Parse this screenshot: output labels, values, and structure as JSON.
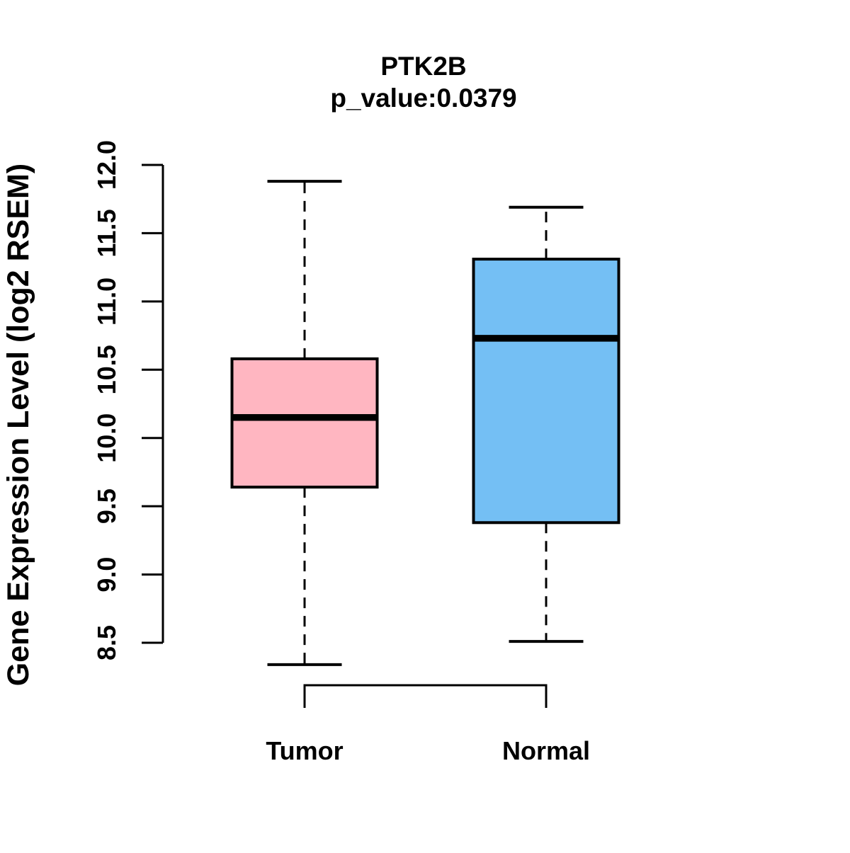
{
  "chart_data": {
    "type": "boxplot",
    "title": "PTK2B",
    "subtitle": "p_value:0.0379",
    "p_value": 0.0379,
    "ylabel": "Gene Expression Level (log2 RSEM)",
    "ylim": [
      8.5,
      12.0
    ],
    "yticks": [
      8.5,
      9.0,
      9.5,
      10.0,
      10.5,
      11.0,
      11.5,
      12.0
    ],
    "ytick_decimals": 1,
    "grid": false,
    "legend": "none",
    "categories": [
      "Tumor",
      "Normal"
    ],
    "series": [
      {
        "name": "Tumor",
        "box_color": "#FFB6C1",
        "whisker_low": 8.34,
        "q1": 9.64,
        "median": 10.15,
        "q3": 10.58,
        "whisker_high": 11.88
      },
      {
        "name": "Normal",
        "box_color": "#74BFF4",
        "whisker_low": 8.51,
        "q1": 9.38,
        "median": 10.73,
        "q3": 11.31,
        "whisker_high": 11.69
      }
    ],
    "colors": {
      "axis": "#000000",
      "background": "#FFFFFF",
      "tumor_fill": "#FFB6C1",
      "normal_fill": "#74BFF4"
    }
  }
}
